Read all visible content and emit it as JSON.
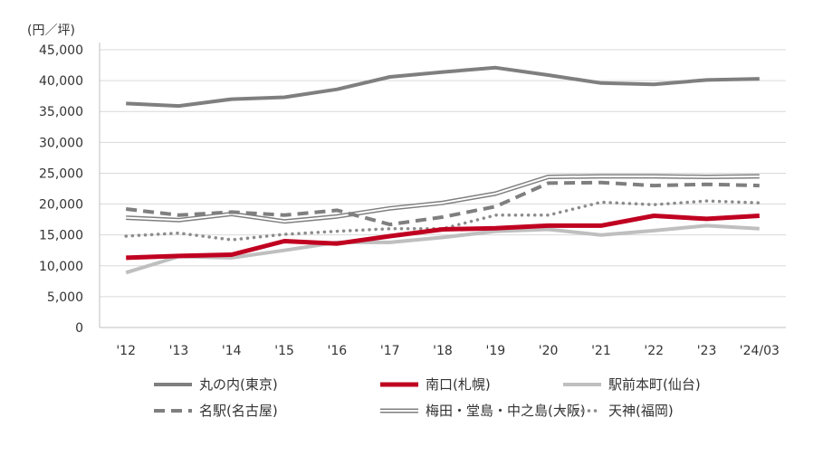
{
  "chart_data": {
    "type": "line",
    "unit_label": "(円／坪)",
    "categories": [
      "'12",
      "'13",
      "'14",
      "'15",
      "'16",
      "'17",
      "'18",
      "'19",
      "'20",
      "'21",
      "'22",
      "'23",
      "'24/03"
    ],
    "ylim": [
      0,
      45000
    ],
    "yticks": [
      "0",
      "5,000",
      "10,000",
      "15,000",
      "20,000",
      "25,000",
      "30,000",
      "35,000",
      "40,000",
      "45,000"
    ],
    "grid": "horizontal",
    "legend_position": "bottom",
    "series": [
      {
        "name": "丸の内(東京)",
        "color": "#7f7f7f",
        "style": "solid-thick",
        "values": [
          36300,
          35900,
          37000,
          37300,
          38600,
          40600,
          41400,
          42100,
          40900,
          39600,
          39400,
          40100,
          40300
        ]
      },
      {
        "name": "南口(札幌)",
        "color": "#c00020",
        "style": "solid-heavy",
        "values": [
          11300,
          11600,
          11800,
          14000,
          13600,
          14800,
          15900,
          16100,
          16500,
          16500,
          18100,
          17600,
          18100
        ]
      },
      {
        "name": "駅前本町(仙台)",
        "color": "#bfbfbf",
        "style": "solid-thick",
        "values": [
          8900,
          11500,
          11300,
          12500,
          13800,
          13800,
          14600,
          15600,
          15900,
          15000,
          15700,
          16500,
          16000
        ]
      },
      {
        "name": "名駅(名古屋)",
        "color": "#7f7f7f",
        "style": "dashed",
        "values": [
          19200,
          18200,
          18700,
          18200,
          19000,
          16700,
          17900,
          19600,
          23400,
          23500,
          23000,
          23200,
          23000
        ]
      },
      {
        "name": "梅田・堂島・中之島(大阪)",
        "color": "#7f7f7f",
        "style": "double",
        "values": [
          17800,
          17400,
          18400,
          17200,
          18000,
          19300,
          20200,
          21700,
          24400,
          24500,
          24500,
          24400,
          24500
        ]
      },
      {
        "name": "天神(福岡)",
        "color": "#8c8c8c",
        "style": "dotted",
        "values": [
          14800,
          15300,
          14200,
          15100,
          15600,
          16000,
          16000,
          18200,
          18200,
          20300,
          19900,
          20500,
          20200
        ]
      }
    ]
  }
}
